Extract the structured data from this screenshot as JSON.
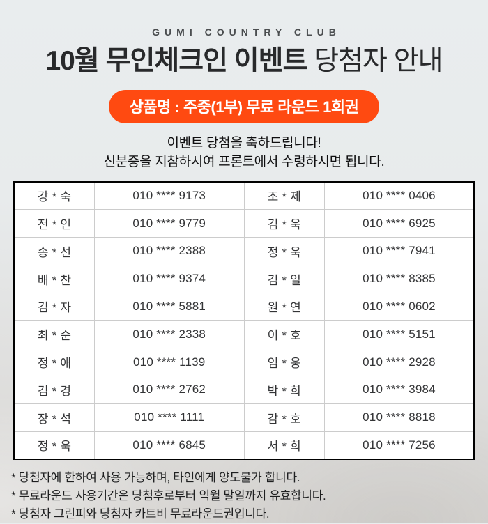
{
  "page": {
    "brand": "GUMI COUNTRY CLUB",
    "title_strong": "10월 무인체크인 이벤트",
    "title_rest": " 당첨자 안내",
    "badge": "상품명 : 주중(1부) 무료 라운드 1회권",
    "congrats_line1": "이벤트 당첨을 축하드립니다!",
    "congrats_line2": "신분증을 지참하시여 프론트에서 수령하시면 됩니다."
  },
  "colors": {
    "badge_bg": "#ff4a11",
    "badge_text": "#ffffff",
    "table_border": "#000000",
    "cell_divider": "#cccccc",
    "bg_top": "#e9edee",
    "bg_bottom": "#d7d5d2"
  },
  "winners": {
    "rows": [
      [
        "강 * 숙",
        "010 **** 9173",
        "조 * 제",
        "010 **** 0406"
      ],
      [
        "전 * 인",
        "010 **** 9779",
        "김 * 욱",
        "010 **** 6925"
      ],
      [
        "송 * 선",
        "010 **** 2388",
        "정 * 욱",
        "010 **** 7941"
      ],
      [
        "배 * 찬",
        "010 **** 9374",
        "김 * 일",
        "010 **** 8385"
      ],
      [
        "김 * 자",
        "010 **** 5881",
        "원 * 연",
        "010 **** 0602"
      ],
      [
        "최 * 순",
        "010 **** 2338",
        "이 * 호",
        "010 **** 5151"
      ],
      [
        "정 * 애",
        "010 **** 1139",
        "임 * 웅",
        "010 **** 2928"
      ],
      [
        "김 * 경",
        "010 **** 2762",
        "박 * 희",
        "010 **** 3984"
      ],
      [
        "장 * 석",
        "010 **** 1111",
        "감 * 호",
        "010 **** 8818"
      ],
      [
        "정 * 욱",
        "010 **** 6845",
        "서 * 희",
        "010 **** 7256"
      ]
    ]
  },
  "notes": [
    "* 당첨자에 한하여 사용 가능하며, 타인에게 양도불가 합니다.",
    "* 무료라운드 사용기간은 당첨후로부터 익월 말일까지 유효합니다.",
    "* 당첨자 그린피와 당첨자 카트비 무료라운드권입니다."
  ]
}
